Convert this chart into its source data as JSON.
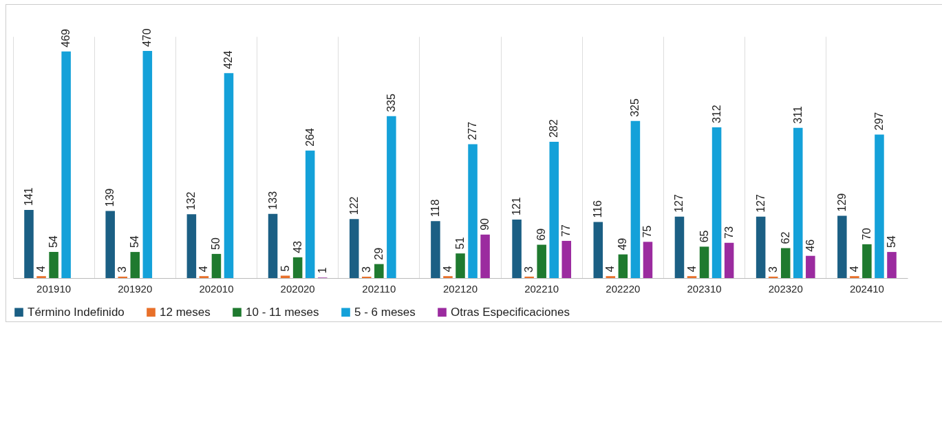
{
  "chart_data": {
    "type": "bar",
    "categories": [
      "201910",
      "201920",
      "202010",
      "202020",
      "202110",
      "202120",
      "202210",
      "202220",
      "202310",
      "202320",
      "202410"
    ],
    "series": [
      {
        "name": "Término Indefinido",
        "color": "#1b5f84",
        "values": [
          141,
          139,
          132,
          133,
          122,
          118,
          121,
          116,
          127,
          127,
          129
        ]
      },
      {
        "name": "12 meses",
        "color": "#e8702a",
        "values": [
          4,
          3,
          4,
          5,
          3,
          4,
          3,
          4,
          4,
          3,
          4
        ]
      },
      {
        "name": "10 - 11 meses",
        "color": "#1f7a2f",
        "values": [
          54,
          54,
          50,
          43,
          29,
          51,
          69,
          49,
          65,
          62,
          70
        ]
      },
      {
        "name": "5 - 6 meses",
        "color": "#14a1d9",
        "values": [
          469,
          470,
          424,
          264,
          335,
          277,
          282,
          325,
          312,
          311,
          297
        ]
      },
      {
        "name": "Otras Especificaciones",
        "color": "#9b2b9f",
        "values": [
          null,
          null,
          null,
          1,
          null,
          90,
          77,
          75,
          73,
          46,
          54
        ]
      }
    ],
    "data_labels": true,
    "grid": "x",
    "legend": "bottom"
  }
}
